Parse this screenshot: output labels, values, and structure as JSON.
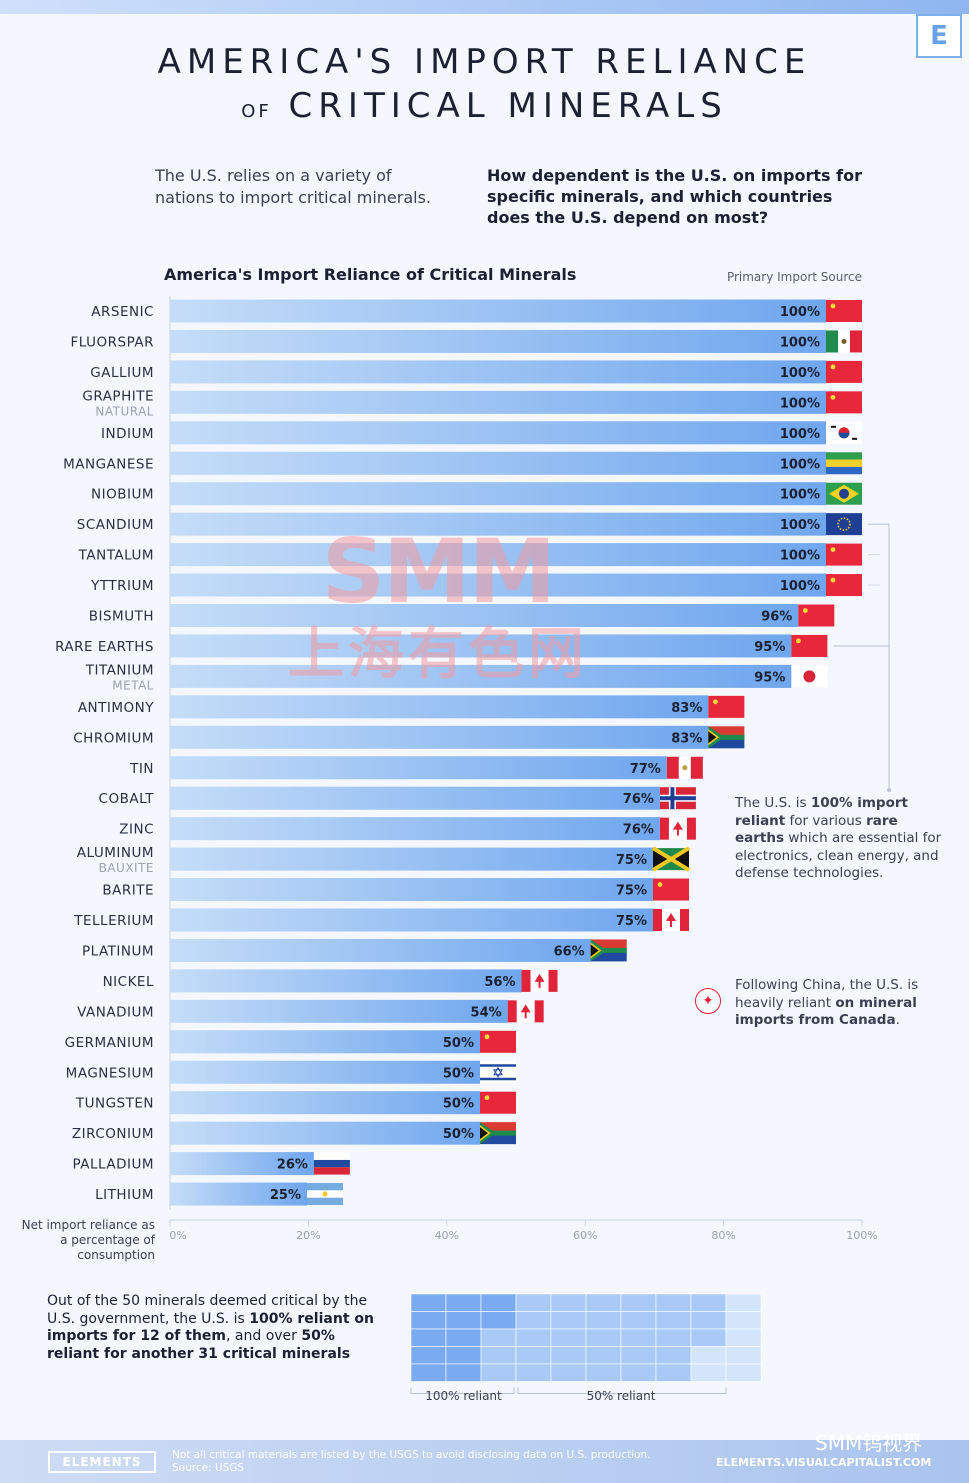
{
  "header": {
    "title_line1": "AMERICA'S IMPORT RELIANCE",
    "title_of": "OF",
    "title_line2": "CRITICAL MINERALS",
    "logo_letter": "E"
  },
  "intro": {
    "left": "The U.S. relies on a variety of nations to import critical minerals.",
    "right": "How dependent is the U.S. on imports for specific minerals, and which countries does the U.S. depend on most?"
  },
  "chart_data": {
    "type": "bar",
    "orientation": "horizontal",
    "title": "America's Import Reliance of Critical Minerals",
    "source_column_label": "Primary Import Source",
    "categories": [
      {
        "name": "ARSENIC",
        "sub": ""
      },
      {
        "name": "FLUORSPAR",
        "sub": ""
      },
      {
        "name": "GALLIUM",
        "sub": ""
      },
      {
        "name": "GRAPHITE",
        "sub": "NATURAL"
      },
      {
        "name": "INDIUM",
        "sub": ""
      },
      {
        "name": "MANGANESE",
        "sub": ""
      },
      {
        "name": "NIOBIUM",
        "sub": ""
      },
      {
        "name": "SCANDIUM",
        "sub": ""
      },
      {
        "name": "TANTALUM",
        "sub": ""
      },
      {
        "name": "YTTRIUM",
        "sub": ""
      },
      {
        "name": "BISMUTH",
        "sub": ""
      },
      {
        "name": "RARE EARTHS",
        "sub": ""
      },
      {
        "name": "TITANIUM",
        "sub": "METAL"
      },
      {
        "name": "ANTIMONY",
        "sub": ""
      },
      {
        "name": "CHROMIUM",
        "sub": ""
      },
      {
        "name": "TIN",
        "sub": ""
      },
      {
        "name": "COBALT",
        "sub": ""
      },
      {
        "name": "ZINC",
        "sub": ""
      },
      {
        "name": "ALUMINUM",
        "sub": "BAUXITE"
      },
      {
        "name": "BARITE",
        "sub": ""
      },
      {
        "name": "TELLERIUM",
        "sub": ""
      },
      {
        "name": "PLATINUM",
        "sub": ""
      },
      {
        "name": "NICKEL",
        "sub": ""
      },
      {
        "name": "VANADIUM",
        "sub": ""
      },
      {
        "name": "GERMANIUM",
        "sub": ""
      },
      {
        "name": "MAGNESIUM",
        "sub": ""
      },
      {
        "name": "TUNGSTEN",
        "sub": ""
      },
      {
        "name": "ZIRCONIUM",
        "sub": ""
      },
      {
        "name": "PALLADIUM",
        "sub": ""
      },
      {
        "name": "LITHIUM",
        "sub": ""
      }
    ],
    "values": [
      100,
      100,
      100,
      100,
      100,
      100,
      100,
      100,
      100,
      100,
      96,
      95,
      95,
      83,
      83,
      77,
      76,
      76,
      75,
      75,
      75,
      66,
      56,
      54,
      50,
      50,
      50,
      50,
      26,
      25
    ],
    "value_labels": [
      "100%",
      "100%",
      "100%",
      "100%",
      "100%",
      "100%",
      "100%",
      "100%",
      "100%",
      "100%",
      "96%",
      "95%",
      "95%",
      "83%",
      "83%",
      "77%",
      "76%",
      "76%",
      "75%",
      "75%",
      "75%",
      "66%",
      "56%",
      "54%",
      "50%",
      "50%",
      "50%",
      "50%",
      "26%",
      "25%"
    ],
    "flags": [
      "china",
      "mexico",
      "china",
      "china",
      "south-korea",
      "gabon",
      "brazil",
      "eu",
      "china",
      "china",
      "china",
      "china",
      "japan",
      "china",
      "south-africa",
      "peru",
      "norway",
      "canada",
      "jamaica",
      "china",
      "canada",
      "south-africa",
      "canada",
      "canada",
      "china",
      "israel",
      "china",
      "south-africa",
      "russia",
      "argentina"
    ],
    "xlim": [
      0,
      100
    ],
    "x_ticks": [
      "0%",
      "20%",
      "40%",
      "60%",
      "80%",
      "100%"
    ],
    "xlabel": "Net import reliance as a percentage of consumption",
    "grid": false
  },
  "annotations": {
    "rare_earths_html_parts": [
      "The U.S. is ",
      "100% import reliant",
      " for various ",
      "rare earths",
      " which are essential for electronics, clean energy, and defense technologies."
    ],
    "canada_parts": [
      "Following China, the U.S. is heavily reliant ",
      "on mineral imports from Canada",
      "."
    ]
  },
  "bottom": {
    "text_parts": [
      "Out of the 50 minerals deemed critical by the U.S. government, the U.S. is ",
      "100% reliant on imports for 12 of them",
      ", and over ",
      "50% reliant",
      " for another 31 critical minerals"
    ],
    "grid_total": 50,
    "grid_100": 12,
    "grid_50": 31,
    "label_100": "100% reliant",
    "label_50": "50% reliant"
  },
  "footer": {
    "brand": "ELEMENTS",
    "note_line1": "Not all critical materials are listed by the USGS to avoid disclosing data on U.S. production.",
    "note_line2": "Source: USGS",
    "url": "ELEMENTS.VISUALCAPITALIST.COM",
    "watermark_brand": "SMM钨视界"
  },
  "watermark": {
    "line1": "SMM",
    "line2": "上海有色网"
  },
  "colors": {
    "bar_start": "#c5ddf8",
    "bar_end": "#6fa6ee",
    "text_dark": "#1c2033",
    "accent_red": "#e0243a",
    "grid_dark": "#7aaaf0",
    "grid_mid": "#a9c9f6",
    "grid_light": "#d3e5fb"
  }
}
